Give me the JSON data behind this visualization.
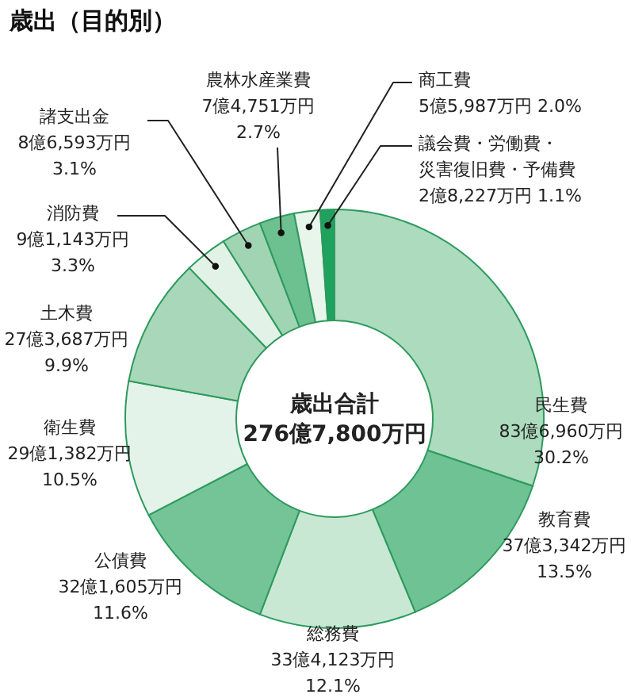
{
  "chart_data": {
    "type": "donut",
    "title": "歳出（目的別）",
    "categories": [
      "民生費",
      "教育費",
      "総務費",
      "公債費",
      "衛生費",
      "土木費",
      "消防費",
      "諸支出金",
      "農林水産業費",
      "商工費",
      "議会費・労働費・災害復旧費・予備費"
    ],
    "values": [
      30.2,
      13.5,
      12.1,
      11.6,
      10.5,
      9.9,
      3.3,
      3.1,
      2.7,
      2.0,
      1.1
    ],
    "value_labels": [
      "83億6,960万円 30.2%",
      "37億3,342万円 13.5%",
      "33億4,123万円 12.1%",
      "32億1,605万円 11.6%",
      "29億1,382万円 10.5%",
      "27億3,687万円 9.9%",
      "9億1,143万円 3.3%",
      "8億6,593万円 3.1%",
      "7億4,751万円 2.7%",
      "5億5,987万円 2.0%",
      "2億8,227万円 1.1%"
    ],
    "colors": [
      "#acdbbd",
      "#6fc293",
      "#c8e8d3",
      "#74c497",
      "#e3f3e9",
      "#a8d8b9",
      "#e2f2e7",
      "#a0d4b3",
      "#6dc08f",
      "#e7f5eb",
      "#1fa25d"
    ],
    "annotations": [
      "歳出合計",
      "276億7,800万円"
    ]
  }
}
